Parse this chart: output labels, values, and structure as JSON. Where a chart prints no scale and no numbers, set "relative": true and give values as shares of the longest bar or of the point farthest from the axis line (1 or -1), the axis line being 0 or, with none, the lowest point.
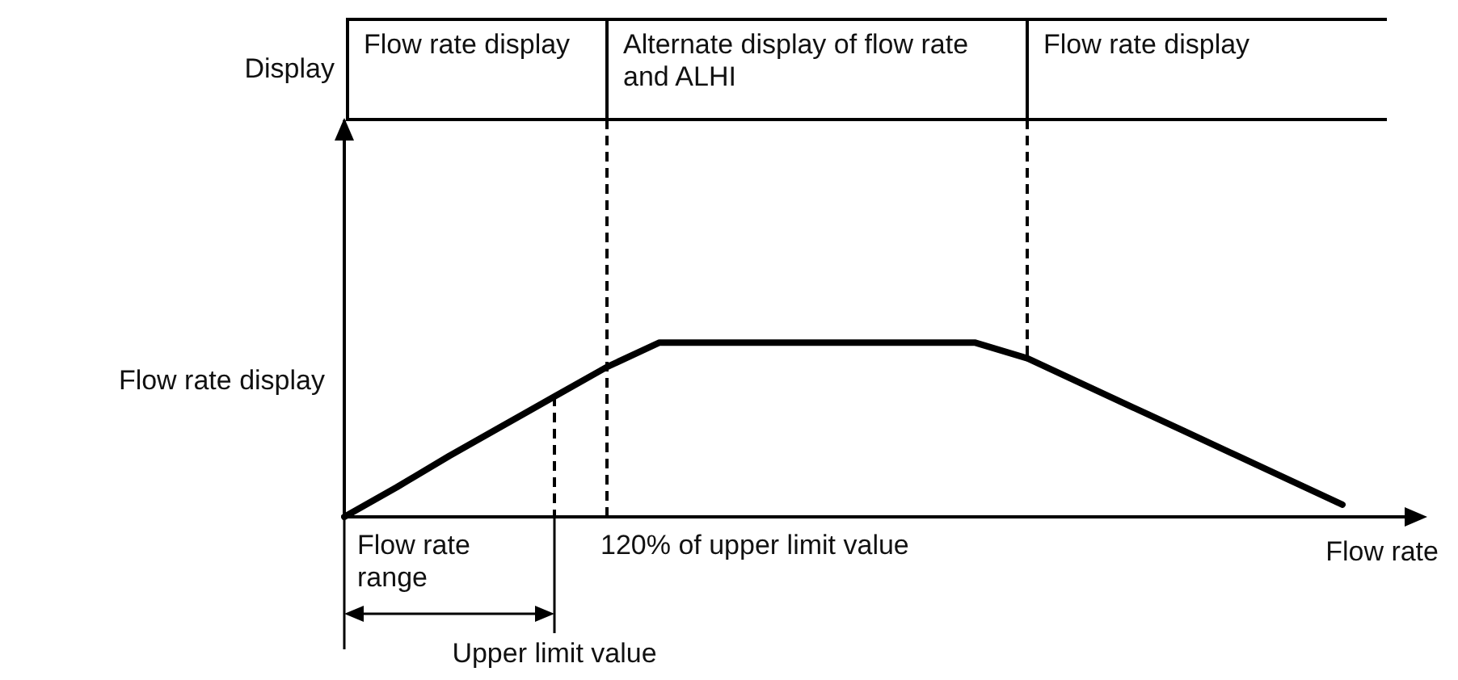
{
  "chart_data": {
    "type": "line",
    "relative": true,
    "xlabel": "Flow rate",
    "ylabel": "Flow rate display",
    "categories": [
      null,
      null,
      null,
      null,
      null,
      null,
      null,
      null,
      null,
      null,
      null,
      null,
      null,
      null,
      null,
      null,
      null,
      null,
      null,
      null,
      null
    ],
    "series": [
      {
        "color": "#000000",
        "values": [
          0,
          0.17,
          0.35,
          0.52,
          0.69,
          0.86,
          1,
          1,
          1,
          1,
          1,
          1,
          1,
          0.91,
          0.77,
          0.63,
          0.49,
          0.35,
          0.21,
          0.07,
          null
        ]
      }
    ],
    "marker": "none",
    "line_style": "solid",
    "annotations": [
      "Display",
      "Flow rate display",
      "Alternate display of flow rate and ALHI",
      "Flow rate display",
      "Flow rate range",
      "Upper limit value",
      "120% of upper limit value"
    ]
  }
}
